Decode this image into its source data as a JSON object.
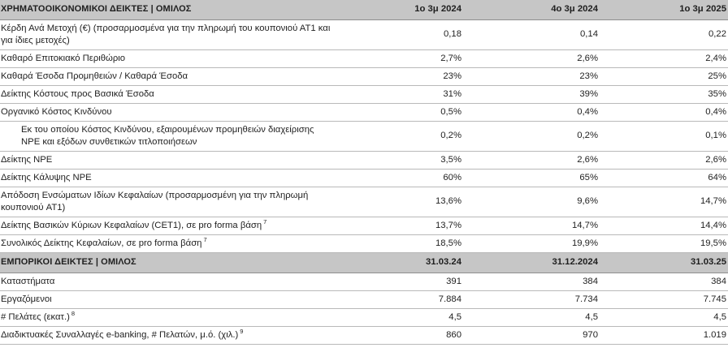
{
  "financial": {
    "header": {
      "title": "ΧΡΗΜΑΤΟΟΙΚΟΝΟΜΙΚΟΙ ΔΕΙΚΤΕΣ | ΟΜΙΛΟΣ",
      "col1": "1ο 3μ 2024",
      "col2": "4ο 3μ 2024",
      "col3": "1ο 3μ 2025"
    },
    "rows": [
      {
        "label": "Κέρδη Ανά Μετοχή (€) (προσαρμοσμένα για την πληρωμή του κουπονιού ΑΤ1 και για ίδιες μετοχές)",
        "v1": "0,18",
        "v2": "0,14",
        "v3": "0,22"
      },
      {
        "label": "Καθαρό Επιτοκιακό Περιθώριο",
        "v1": "2,7%",
        "v2": "2,6%",
        "v3": "2,4%"
      },
      {
        "label": "Καθαρά Έσοδα Προμηθειών / Καθαρά Έσοδα",
        "v1": "23%",
        "v2": "23%",
        "v3": "25%"
      },
      {
        "label": "Δείκτης Κόστους προς Βασικά  Έσοδα",
        "v1": "31%",
        "v2": "39%",
        "v3": "35%"
      },
      {
        "label": "Οργανικό Κόστος Κινδύνου",
        "v1": "0,5%",
        "v2": "0,4%",
        "v3": "0,4%"
      },
      {
        "label": "Εκ του οποίου Κόστος Κινδύνου, εξαιρουμένων προμηθειών διαχείρισης NPE και εξόδων συνθετικών τιτλοποιήσεων",
        "v1": "0,2%",
        "v2": "0,2%",
        "v3": "0,1%"
      },
      {
        "label": "Δείκτης NPE",
        "v1": "3,5%",
        "v2": "2,6%",
        "v3": "2,6%"
      },
      {
        "label": "Δείκτης Κάλυψης NPE",
        "v1": "60%",
        "v2": "65%",
        "v3": "64%"
      },
      {
        "label": "Απόδοση Ενσώματων Ιδίων Κεφαλαίων (προσαρμοσμένη για την πληρωμή κουπονιού AT1)",
        "v1": "13,6%",
        "v2": "9,6%",
        "v3": "14,7%"
      },
      {
        "label": "Δείκτης Βασικών Κύριων Κεφαλαίων (CET1), σε pro forma βάση",
        "note": "7",
        "v1": "13,7%",
        "v2": "14,7%",
        "v3": "14,4%"
      },
      {
        "label": "Συνολικός Δείκτης Κεφαλαίων, σε pro forma βάση",
        "note": "7",
        "v1": "18,5%",
        "v2": "19,9%",
        "v3": "19,5%"
      }
    ]
  },
  "commercial": {
    "header": {
      "title": "ΕΜΠΟΡΙΚΟΙ ΔΕΙΚΤΕΣ | ΟΜΙΛΟΣ",
      "col1": "31.03.24",
      "col2": "31.12.2024",
      "col3": "31.03.25"
    },
    "rows": [
      {
        "label": "Καταστήματα",
        "v1": "391",
        "v2": "384",
        "v3": "384"
      },
      {
        "label": "Εργαζόμενοι",
        "v1": "7.884",
        "v2": "7.734",
        "v3": "7.745"
      },
      {
        "label": "# Πελάτες (εκατ.)",
        "note": "8",
        "v1": "4,5",
        "v2": "4,5",
        "v3": "4,5"
      },
      {
        "label": "Διαδικτυακές Συναλλαγές e-banking, # Πελατών, μ.ό. (χιλ.)",
        "note": "9",
        "v1": "860",
        "v2": "970",
        "v3": "1.019"
      }
    ]
  }
}
